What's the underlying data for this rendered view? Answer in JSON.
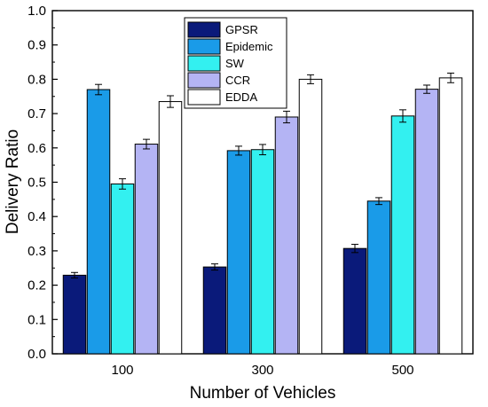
{
  "chart_data": {
    "type": "bar",
    "xlabel": "Number of Vehicles",
    "ylabel": "Delivery Ratio",
    "categories": [
      "100",
      "300",
      "500"
    ],
    "ylim": [
      0.0,
      1.0
    ],
    "yticks": [
      "0.0",
      "0.1",
      "0.2",
      "0.3",
      "0.4",
      "0.5",
      "0.6",
      "0.7",
      "0.8",
      "0.9",
      "1.0"
    ],
    "legend_position": "top-center",
    "grid": false,
    "series": [
      {
        "name": "GPSR",
        "color": "#0a1a7a",
        "values": [
          0.229,
          0.253,
          0.307
        ],
        "errors": [
          0.008,
          0.009,
          0.012
        ]
      },
      {
        "name": "Epidemic",
        "color": "#1a9be8",
        "values": [
          0.77,
          0.592,
          0.445
        ],
        "errors": [
          0.015,
          0.013,
          0.01
        ]
      },
      {
        "name": "SW",
        "color": "#33f0f0",
        "values": [
          0.495,
          0.595,
          0.693
        ],
        "errors": [
          0.015,
          0.015,
          0.018
        ]
      },
      {
        "name": "CCR",
        "color": "#b4b4f4",
        "values": [
          0.611,
          0.69,
          0.771
        ],
        "errors": [
          0.014,
          0.017,
          0.012
        ]
      },
      {
        "name": "EDDA",
        "color": "#ffffff",
        "values": [
          0.735,
          0.8,
          0.804
        ],
        "errors": [
          0.017,
          0.013,
          0.014
        ]
      }
    ]
  }
}
